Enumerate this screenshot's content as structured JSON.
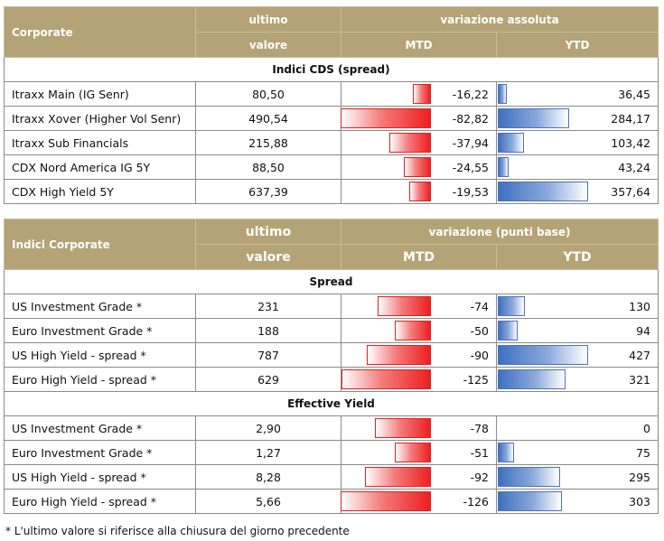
{
  "table1": {
    "header": {
      "label": "Corporate",
      "ultimo": "ultimo",
      "valore": "valore",
      "variazione": "variazione assoluta",
      "mtd": "MTD",
      "ytd": "YTD"
    },
    "section": "Indici CDS (spread)",
    "rows": [
      {
        "name": "Itraxx Main (IG Senr)",
        "value": "80,50",
        "mtd": "-16,22",
        "ytd": "36,45",
        "mtd_num": -16.22,
        "ytd_num": 36.45
      },
      {
        "name": "Itraxx Xover (Higher Vol Senr)",
        "value": "490,54",
        "mtd": "-82,82",
        "ytd": "284,17",
        "mtd_num": -82.82,
        "ytd_num": 284.17
      },
      {
        "name": "Itraxx Sub Financials",
        "value": "215,88",
        "mtd": "-37,94",
        "ytd": "103,42",
        "mtd_num": -37.94,
        "ytd_num": 103.42
      },
      {
        "name": "CDX Nord America IG 5Y",
        "value": "88,50",
        "mtd": "-24,55",
        "ytd": "43,24",
        "mtd_num": -24.55,
        "ytd_num": 43.24
      },
      {
        "name": "CDX High Yield 5Y",
        "value": "637,39",
        "mtd": "-19,53",
        "ytd": "357,64",
        "mtd_num": -19.53,
        "ytd_num": 357.64
      }
    ]
  },
  "table2": {
    "header": {
      "label": "Indici Corporate",
      "ultimo": "ultimo",
      "valore": "valore",
      "variazione": "variazione (punti base)",
      "mtd": "MTD",
      "ytd": "YTD"
    },
    "section_spread": "Spread",
    "spread_rows": [
      {
        "name": "US Investment Grade *",
        "value": "231",
        "mtd": "-74",
        "ytd": "130",
        "mtd_num": -74,
        "ytd_num": 130
      },
      {
        "name": "Euro Investment Grade *",
        "value": "188",
        "mtd": "-50",
        "ytd": "94",
        "mtd_num": -50,
        "ytd_num": 94
      },
      {
        "name": "US High Yield - spread *",
        "value": "787",
        "mtd": "-90",
        "ytd": "427",
        "mtd_num": -90,
        "ytd_num": 427
      },
      {
        "name": "Euro High Yield - spread *",
        "value": "629",
        "mtd": "-125",
        "ytd": "321",
        "mtd_num": -125,
        "ytd_num": 321
      }
    ],
    "section_yield": "Effective Yield",
    "yield_rows": [
      {
        "name": "US Investment Grade *",
        "value": "2,90",
        "mtd": "-78",
        "ytd": "0",
        "mtd_num": -78,
        "ytd_num": 0
      },
      {
        "name": "Euro Investment Grade *",
        "value": "1,27",
        "mtd": "-51",
        "ytd": "75",
        "mtd_num": -51,
        "ytd_num": 75
      },
      {
        "name": "US High Yield - spread *",
        "value": "8,28",
        "mtd": "-92",
        "ytd": "295",
        "mtd_num": -92,
        "ytd_num": 295
      },
      {
        "name": "Euro High Yield - spread *",
        "value": "5,66",
        "mtd": "-126",
        "ytd": "303",
        "mtd_num": -126,
        "ytd_num": 303
      }
    ]
  },
  "footnote": "* L'ultimo valore si riferisce alla chiusura del giorno precedente"
}
